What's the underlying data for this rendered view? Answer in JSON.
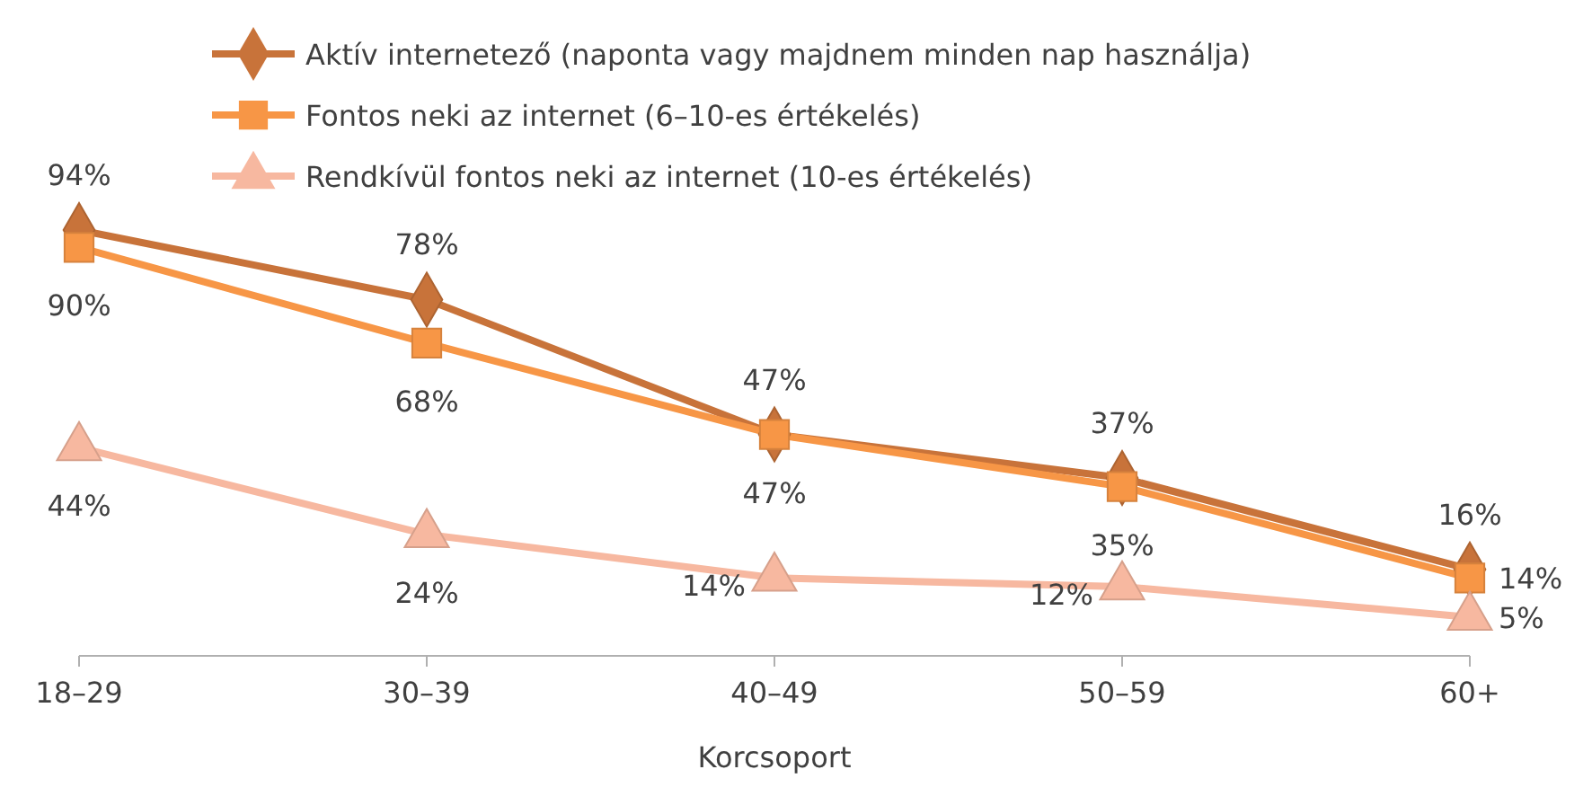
{
  "chart_data": {
    "type": "line",
    "xlabel": "Korcsoport",
    "categories": [
      "18–29",
      "30–39",
      "40–49",
      "50–59",
      "60+"
    ],
    "tick_labels": "x",
    "legend": "top",
    "grid": false,
    "line_style": "solid",
    "series": [
      {
        "name": "Aktív internetező (naponta vagy majdnem minden nap használja)",
        "color": "#c8733a",
        "marker": "diamond",
        "values": [
          94,
          78,
          47,
          37,
          16
        ],
        "value_labels": [
          "94%",
          "78%",
          "47%",
          "37%",
          "16%"
        ]
      },
      {
        "name": "Fontos neki az internet (6–10-es értékelés)",
        "color": "#f79646",
        "marker": "square",
        "values": [
          90,
          68,
          47,
          35,
          14
        ],
        "value_labels": [
          "90%",
          "68%",
          "47%",
          "35%",
          "14%"
        ]
      },
      {
        "name": "Rendkívül fontos neki az internet (10-es értékelés)",
        "color": "#f7b8a0",
        "marker": "triangle",
        "values": [
          44,
          24,
          14,
          12,
          5
        ],
        "value_labels": [
          "44%",
          "24%",
          "14%",
          "12%",
          "5%"
        ]
      }
    ]
  }
}
